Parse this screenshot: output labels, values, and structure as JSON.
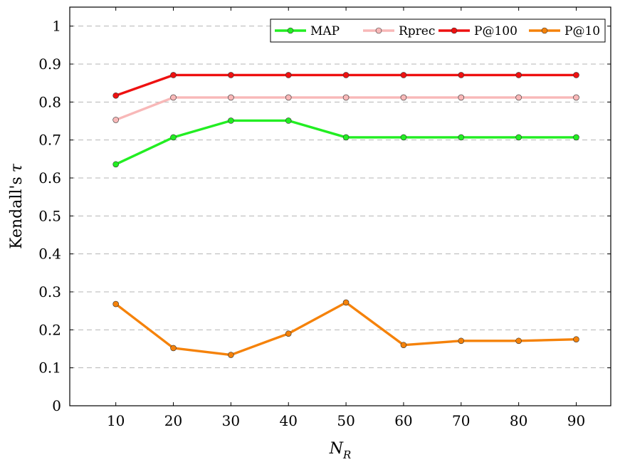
{
  "chart_data": {
    "type": "line",
    "title": "",
    "xlabel": "N",
    "xlabel_sub": "R",
    "ylabel": "Kendall's",
    "ylabel_symbol": "τ",
    "xlim": [
      2,
      96
    ],
    "ylim": [
      0,
      1.05
    ],
    "x": [
      10,
      20,
      30,
      40,
      50,
      60,
      70,
      80,
      90
    ],
    "xticks": [
      "10",
      "20",
      "30",
      "40",
      "50",
      "60",
      "70",
      "80",
      "90"
    ],
    "yticks": [
      "0",
      "0.1",
      "0.2",
      "0.3",
      "0.4",
      "0.5",
      "0.6",
      "0.7",
      "0.8",
      "0.9",
      "1"
    ],
    "ytick_values": [
      0,
      0.1,
      0.2,
      0.3,
      0.4,
      0.5,
      0.6,
      0.7,
      0.8,
      0.9,
      1
    ],
    "grid": "horizontal dashed",
    "legend_position": "top-right",
    "series": [
      {
        "name": "MAP",
        "color": "#22ee22",
        "values": [
          0.636,
          0.707,
          0.751,
          0.751,
          0.707,
          0.707,
          0.707,
          0.707,
          0.707
        ]
      },
      {
        "name": "Rprec",
        "color": "#f8b8b8",
        "values": [
          0.753,
          0.812,
          0.812,
          0.812,
          0.812,
          0.812,
          0.812,
          0.812,
          0.812
        ]
      },
      {
        "name": "P@100",
        "color": "#ee1111",
        "values": [
          0.817,
          0.871,
          0.871,
          0.871,
          0.871,
          0.871,
          0.871,
          0.871,
          0.871
        ]
      },
      {
        "name": "P@10",
        "color": "#f5820a",
        "values": [
          0.268,
          0.152,
          0.134,
          0.19,
          0.272,
          0.16,
          0.171,
          0.171,
          0.175
        ]
      }
    ]
  }
}
